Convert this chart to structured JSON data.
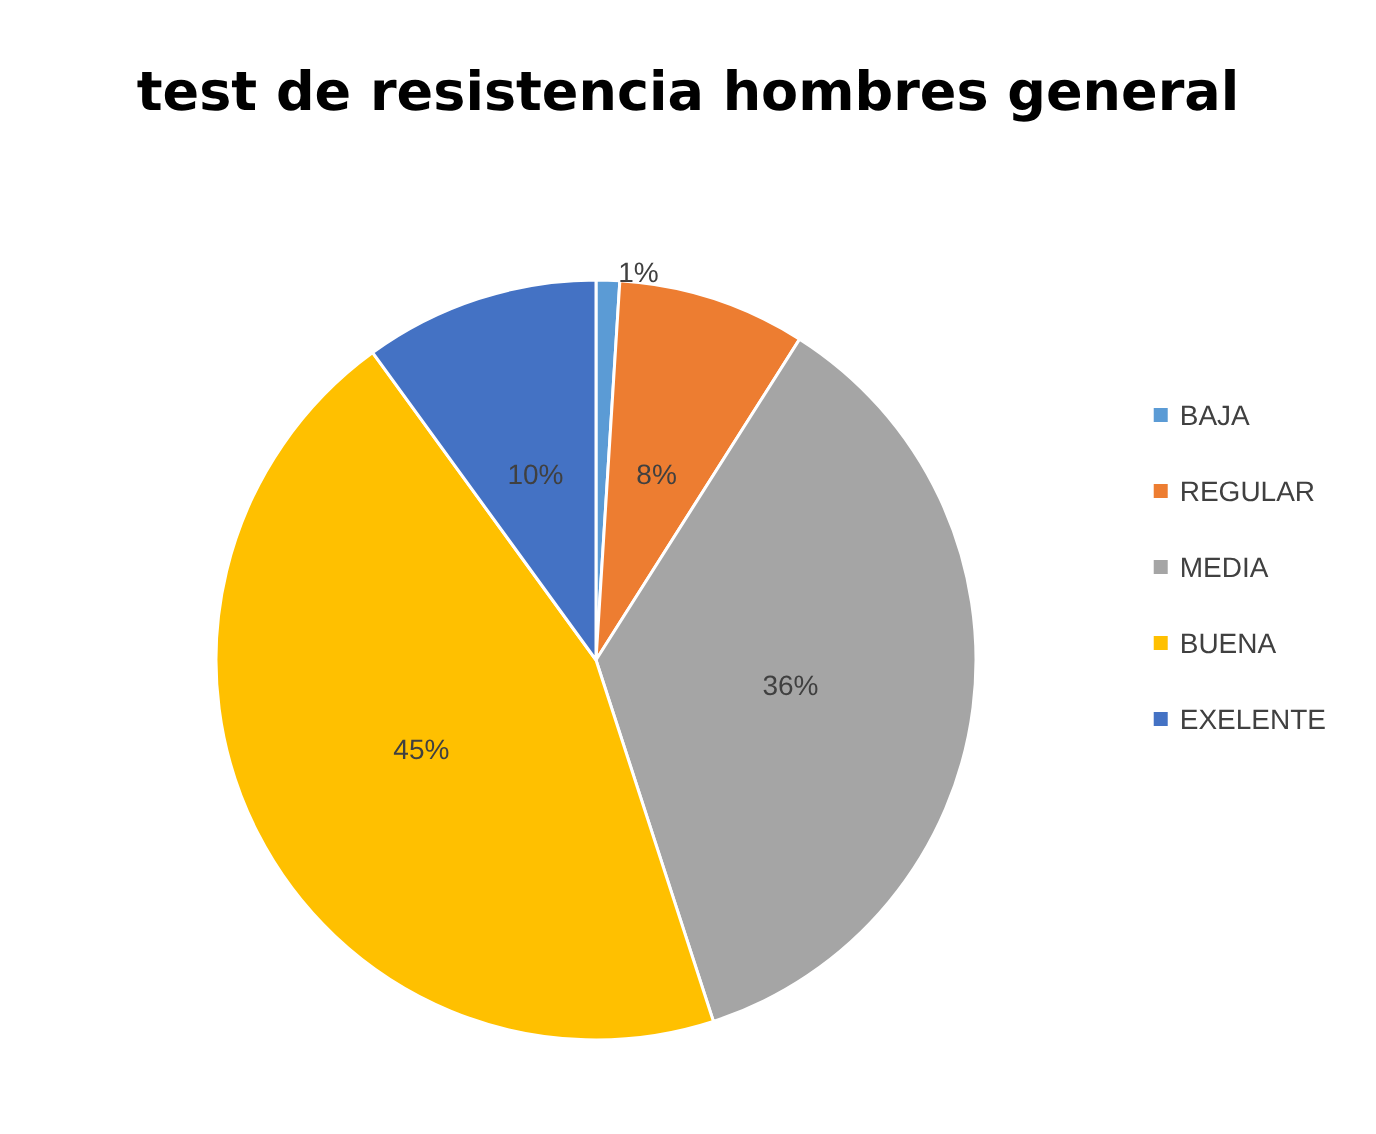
{
  "chart_data": {
    "type": "pie",
    "title": "test de resistencia hombres general",
    "categories": [
      "BAJA",
      "REGULAR",
      "MEDIA",
      "BUENA",
      "EXELENTE"
    ],
    "values": [
      1,
      8,
      36,
      45,
      10
    ],
    "colors": [
      "#5b9bd5",
      "#ed7d31",
      "#a5a5a5",
      "#ffc000",
      "#4472c4"
    ],
    "value_labels": [
      "1%",
      "8%",
      "36%",
      "45%",
      "10%"
    ],
    "legend": "right"
  }
}
